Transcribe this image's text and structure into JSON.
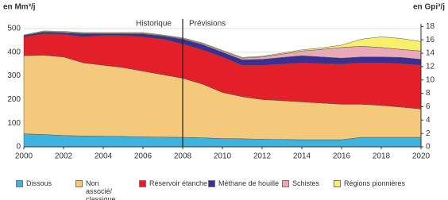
{
  "chart_data": {
    "type": "stacked_area",
    "y_label": "en Mm³/j",
    "y2_label": "en Gpi³/j",
    "x": [
      2000,
      2001,
      2002,
      2003,
      2004,
      2005,
      2006,
      2007,
      2008,
      2009,
      2010,
      2011,
      2012,
      2013,
      2014,
      2015,
      2016,
      2017,
      2018,
      2019,
      2020
    ],
    "xlim": [
      2000,
      2020
    ],
    "xticks": [
      2000,
      2002,
      2004,
      2006,
      2008,
      2010,
      2012,
      2014,
      2016,
      2018,
      2020
    ],
    "ylim": [
      0,
      520
    ],
    "yticks": [
      0,
      100,
      200,
      300,
      400,
      500
    ],
    "y2lim": [
      0,
      18.4
    ],
    "y2ticks": [
      0,
      2,
      4,
      6,
      8,
      10,
      12,
      14,
      16,
      18
    ],
    "divider_x": 2008,
    "annotations": [
      "Historique",
      "Prévisions"
    ],
    "series": [
      {
        "name": "Dissous",
        "color": "#3fb3e0",
        "values": [
          55,
          52,
          48,
          46,
          45,
          44,
          42,
          41,
          40,
          38,
          35,
          34,
          32,
          31,
          30,
          30,
          30,
          40,
          40,
          40,
          40
        ]
      },
      {
        "name": "Non associé/ classique",
        "color": "#f5c97c",
        "values": [
          330,
          335,
          332,
          309,
          300,
          291,
          278,
          264,
          250,
          227,
          195,
          178,
          168,
          164,
          160,
          155,
          150,
          140,
          135,
          128,
          120
        ]
      },
      {
        "name": "Réservoir étanche",
        "color": "#e3202a",
        "values": [
          80,
          91,
          95,
          110,
          125,
          135,
          145,
          150,
          145,
          145,
          150,
          133,
          145,
          155,
          165,
          167,
          170,
          175,
          180,
          184,
          185
        ]
      },
      {
        "name": "Méthane de houille",
        "color": "#3a2f95",
        "values": [
          5,
          7,
          7,
          13,
          8,
          8,
          12,
          13,
          20,
          22,
          20,
          23,
          25,
          28,
          30,
          28,
          25,
          25,
          25,
          26,
          25
        ]
      },
      {
        "name": "Schistes",
        "color": "#e9a9b9",
        "values": [
          1,
          2,
          3,
          2,
          2,
          2,
          3,
          2,
          3,
          4,
          5,
          7,
          10,
          14,
          20,
          32,
          45,
          45,
          40,
          34,
          35
        ]
      },
      {
        "name": "Régions pionnières",
        "color": "#f8f06a",
        "values": [
          2,
          3,
          3,
          3,
          3,
          3,
          3,
          3,
          3,
          3,
          3,
          3,
          3,
          4,
          5,
          6,
          10,
          30,
          45,
          46,
          40
        ]
      }
    ]
  }
}
